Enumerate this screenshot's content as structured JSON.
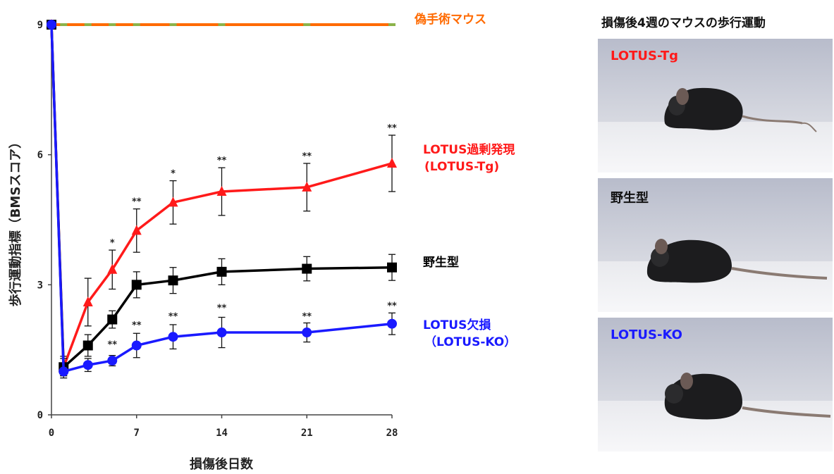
{
  "chart_data": {
    "type": "line",
    "xlabel": "損傷後日数",
    "ylabel": "歩行運動指標（BMSスコア）",
    "x_ticks": [
      "0",
      "7",
      "14",
      "21",
      "28"
    ],
    "y_ticks": [
      "0",
      "3",
      "6",
      "9"
    ],
    "xlim": [
      0,
      28
    ],
    "ylim": [
      0,
      9
    ],
    "series": [
      {
        "name": "偽手術マウス",
        "color": "#ff6a00",
        "marker": "line",
        "x": [
          0,
          1,
          3,
          5,
          7,
          10,
          14,
          21,
          28
        ],
        "y": [
          9,
          9,
          9,
          9,
          9,
          9,
          9,
          9,
          9
        ],
        "err": [
          0,
          0,
          0,
          0,
          0,
          0,
          0,
          0,
          0
        ]
      },
      {
        "name": "LOTUS過剰発現\n(LOTUS-Tg)",
        "color": "#ff1a1a",
        "marker": "triangle",
        "x": [
          0,
          1,
          3,
          5,
          7,
          10,
          14,
          21,
          28
        ],
        "y": [
          9,
          1.1,
          2.6,
          3.35,
          4.25,
          4.9,
          5.15,
          5.25,
          5.8
        ],
        "err": [
          0,
          0.25,
          0.55,
          0.45,
          0.5,
          0.5,
          0.55,
          0.55,
          0.65
        ]
      },
      {
        "name": "野生型",
        "color": "#000000",
        "marker": "square",
        "x": [
          0,
          1,
          3,
          5,
          7,
          10,
          14,
          21,
          28
        ],
        "y": [
          9,
          1.1,
          1.6,
          2.2,
          3.0,
          3.1,
          3.3,
          3.37,
          3.4
        ],
        "err": [
          0,
          0.2,
          0.25,
          0.2,
          0.3,
          0.3,
          0.3,
          0.28,
          0.3
        ]
      },
      {
        "name": "LOTUS欠損\n（LOTUS-KO）",
        "color": "#1a1aff",
        "marker": "circle",
        "x": [
          0,
          1,
          3,
          5,
          7,
          10,
          14,
          21,
          28
        ],
        "y": [
          9,
          1.0,
          1.15,
          1.25,
          1.6,
          1.8,
          1.9,
          1.9,
          2.1
        ],
        "err": [
          0,
          0.1,
          0.15,
          0.12,
          0.28,
          0.28,
          0.35,
          0.22,
          0.25
        ]
      }
    ],
    "annotations": [
      {
        "x": 5,
        "y": 3.8,
        "text": "*"
      },
      {
        "x": 7,
        "y": 4.75,
        "text": "**"
      },
      {
        "x": 10,
        "y": 5.4,
        "text": "*"
      },
      {
        "x": 14,
        "y": 5.7,
        "text": "**"
      },
      {
        "x": 21,
        "y": 5.8,
        "text": "**"
      },
      {
        "x": 28,
        "y": 6.45,
        "text": "**"
      },
      {
        "x": 5,
        "y": 1.45,
        "text": "**"
      },
      {
        "x": 7,
        "y": 1.9,
        "text": "**"
      },
      {
        "x": 10,
        "y": 2.1,
        "text": "**"
      },
      {
        "x": 14,
        "y": 2.3,
        "text": "**"
      },
      {
        "x": 21,
        "y": 2.1,
        "text": "**"
      },
      {
        "x": 28,
        "y": 2.35,
        "text": "**"
      }
    ],
    "grid": false
  },
  "photos": {
    "title": "損傷後4週のマウスの歩行運動",
    "panels": [
      {
        "label": "LOTUS-Tg",
        "label_color": "#ff1a1a"
      },
      {
        "label": "野生型",
        "label_color": "#111111"
      },
      {
        "label": "LOTUS-KO",
        "label_color": "#1a1aff"
      }
    ]
  }
}
